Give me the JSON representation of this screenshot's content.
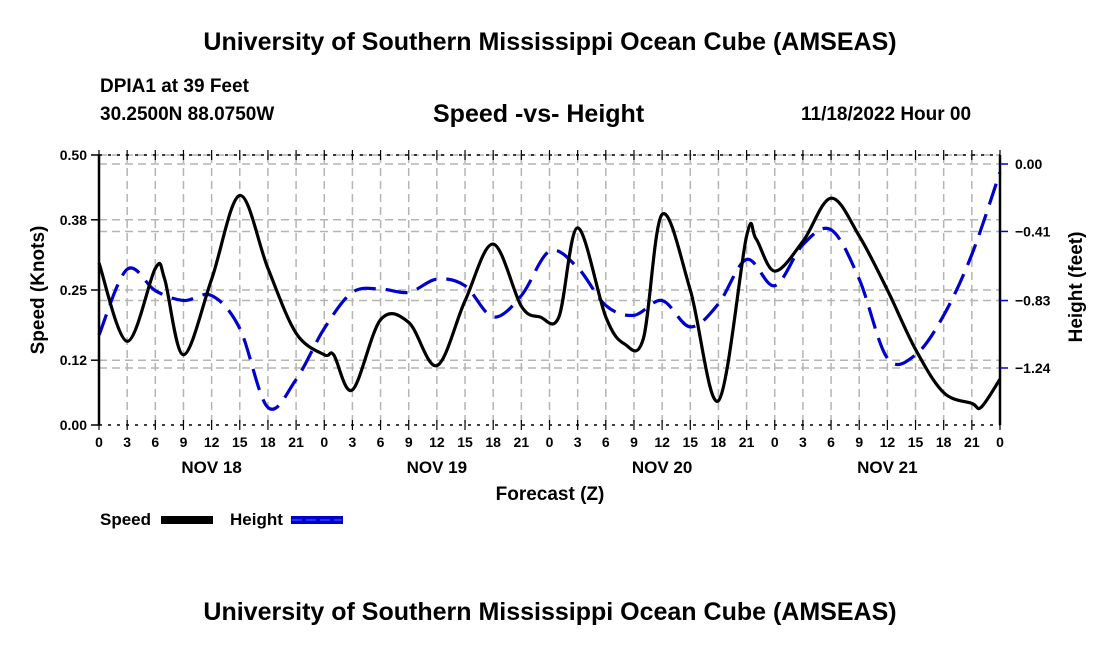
{
  "header": {
    "title": "University of Southern Mississippi Ocean Cube (AMSEAS)",
    "station": "DPIA1 at 39 Feet",
    "coordinates": "30.2500N  88.0750W",
    "subtitle": "Speed -vs- Height",
    "date": "11/18/2022 Hour 00"
  },
  "footer": {
    "title": "University of Southern Mississippi Ocean Cube (AMSEAS)"
  },
  "chart_data": {
    "type": "line",
    "title": "Speed -vs- Height",
    "xlabel": "Forecast (Z)",
    "ylabel": "Speed (Knots)",
    "y2label": "Height (feet)",
    "x_unit": "forecast hour",
    "xlim": [
      0,
      96
    ],
    "x_tick_step_hours": 3,
    "x_tick_labels": [
      "0",
      "3",
      "6",
      "9",
      "12",
      "15",
      "18",
      "21",
      "0",
      "3",
      "6",
      "9",
      "12",
      "15",
      "18",
      "21",
      "0",
      "3",
      "6",
      "9",
      "12",
      "15",
      "18",
      "21",
      "0",
      "3",
      "6",
      "9",
      "12",
      "15",
      "18",
      "21",
      "0"
    ],
    "day_labels": [
      {
        "label": "NOV 18",
        "center_hour": 12
      },
      {
        "label": "NOV 19",
        "center_hour": 36
      },
      {
        "label": "NOV 20",
        "center_hour": 60
      },
      {
        "label": "NOV 21",
        "center_hour": 84
      }
    ],
    "ylim": [
      0,
      0.5
    ],
    "y_ticks": [
      0.0,
      0.12,
      0.25,
      0.38,
      0.5
    ],
    "y_tick_labels": [
      "0.00",
      "0.12",
      "0.25",
      "0.38",
      "0.50"
    ],
    "y2lim": [
      -1.58,
      0.05
    ],
    "y2_ticks": [
      0.0,
      -0.41,
      -0.83,
      -1.24
    ],
    "y2_tick_labels": [
      "0.00",
      "−0.41",
      "−0.83",
      "−1.24"
    ],
    "grid": true,
    "legend_position": "bottom-left",
    "series": [
      {
        "name": "Speed",
        "axis": "left",
        "color": "#000000",
        "style": "solid",
        "x": [
          0,
          3,
          6,
          7,
          9,
          12,
          15,
          18,
          21,
          24,
          25,
          27,
          30,
          33,
          36,
          39,
          42,
          45,
          47,
          49,
          51,
          54,
          56,
          58,
          60,
          63,
          66,
          69,
          70,
          72,
          75,
          78,
          81,
          84,
          87,
          90,
          93,
          94,
          96
        ],
        "values": [
          0.3,
          0.155,
          0.29,
          0.27,
          0.13,
          0.27,
          0.425,
          0.29,
          0.17,
          0.13,
          0.13,
          0.065,
          0.195,
          0.19,
          0.11,
          0.23,
          0.335,
          0.22,
          0.2,
          0.2,
          0.365,
          0.2,
          0.15,
          0.16,
          0.39,
          0.25,
          0.045,
          0.35,
          0.345,
          0.285,
          0.34,
          0.42,
          0.35,
          0.25,
          0.14,
          0.06,
          0.04,
          0.033,
          0.085
        ]
      },
      {
        "name": "Height",
        "axis": "right",
        "color": "#0000cc",
        "style": "dashed",
        "x": [
          0,
          3,
          6,
          9,
          12,
          15,
          18,
          21,
          24,
          27,
          30,
          33,
          36,
          39,
          42,
          45,
          48,
          51,
          54,
          57,
          60,
          63,
          66,
          69,
          72,
          75,
          78,
          81,
          84,
          87,
          90,
          93,
          96
        ],
        "values": [
          -1.04,
          -0.64,
          -0.77,
          -0.83,
          -0.8,
          -1.0,
          -1.48,
          -1.31,
          -1.0,
          -0.78,
          -0.76,
          -0.78,
          -0.7,
          -0.74,
          -0.93,
          -0.8,
          -0.53,
          -0.63,
          -0.86,
          -0.92,
          -0.83,
          -0.99,
          -0.85,
          -0.58,
          -0.74,
          -0.49,
          -0.4,
          -0.7,
          -1.18,
          -1.16,
          -0.92,
          -0.55,
          -0.05
        ]
      }
    ]
  },
  "legend": {
    "items": [
      {
        "label": "Speed",
        "color": "#000000",
        "style": "solid"
      },
      {
        "label": "Height",
        "color": "#0000cc",
        "style": "dashed"
      }
    ]
  }
}
